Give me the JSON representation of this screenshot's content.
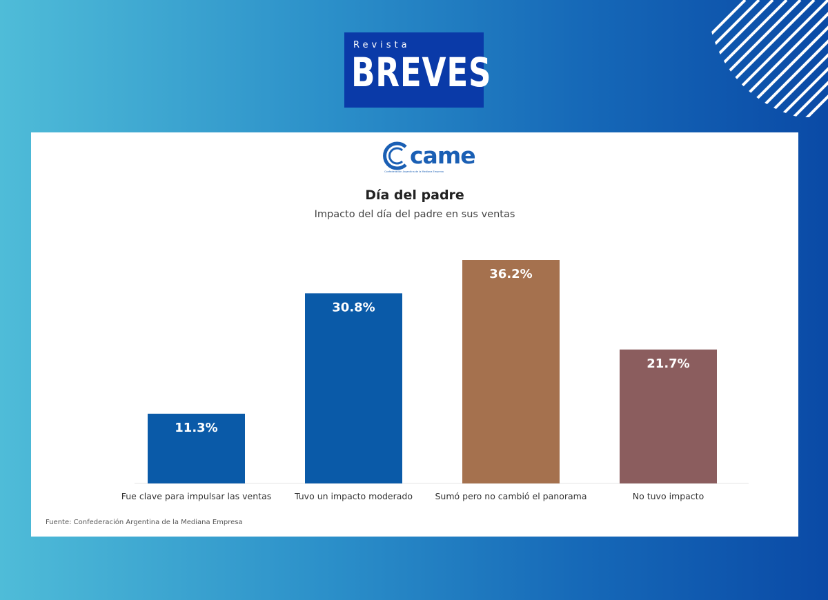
{
  "header": {
    "logo_small": "Revista",
    "logo_main": "BREVES"
  },
  "card": {
    "org_logo": "came",
    "org_logo_tagline": "Confederación Argentina de la Mediana Empresa",
    "source": "Fuente: Confederación Argentina de la Mediana Empresa"
  },
  "colors": {
    "background_left": "#4fbcd8",
    "background_right": "#0a4aa6",
    "logo_box": "#0a3aa8",
    "blue_bar": "#0a5aa8",
    "orange_bar": "#a5714e",
    "mauve_bar": "#8b5d5e"
  },
  "chart_data": {
    "type": "bar",
    "title": "Día del padre",
    "subtitle": "Impacto del día del padre en sus ventas",
    "categories": [
      "Fue clave para impulsar las ventas",
      "Tuvo un impacto moderado",
      "Sumó pero no cambió el panorama",
      "No tuvo impacto"
    ],
    "values": [
      11.3,
      30.8,
      36.2,
      21.7
    ],
    "value_labels": [
      "11.3%",
      "30.8%",
      "36.2%",
      "21.7%"
    ],
    "bar_colors": [
      "#0a5aa8",
      "#0a5aa8",
      "#a5714e",
      "#8b5d5e"
    ],
    "xlabel": "",
    "ylabel": "",
    "ylim": [
      0,
      36.2
    ],
    "grid": false,
    "legend": "none"
  }
}
